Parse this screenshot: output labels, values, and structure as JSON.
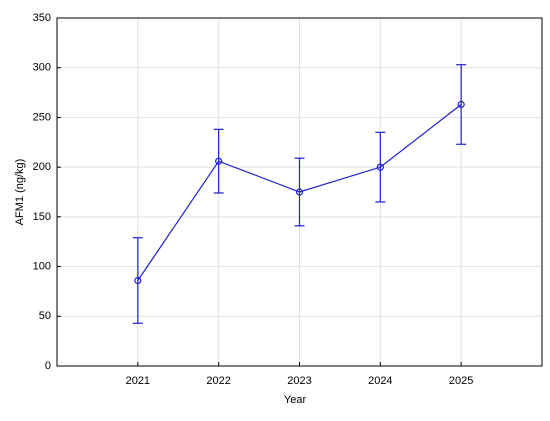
{
  "chart_data": {
    "type": "line",
    "x_label": "Year",
    "y_label": "AFM1 (ng/kg)",
    "categories": [
      "2021",
      "2022",
      "2023",
      "2024",
      "2025"
    ],
    "series": [
      {
        "color": "#1f1fcc",
        "values": [
          86,
          206,
          175,
          200,
          263
        ],
        "errors": [
          43,
          32,
          34,
          35,
          40
        ]
      }
    ],
    "ylim": [
      0,
      350
    ],
    "yticks": [
      0,
      50,
      100,
      150,
      200,
      250,
      300,
      350
    ],
    "grid": true
  }
}
